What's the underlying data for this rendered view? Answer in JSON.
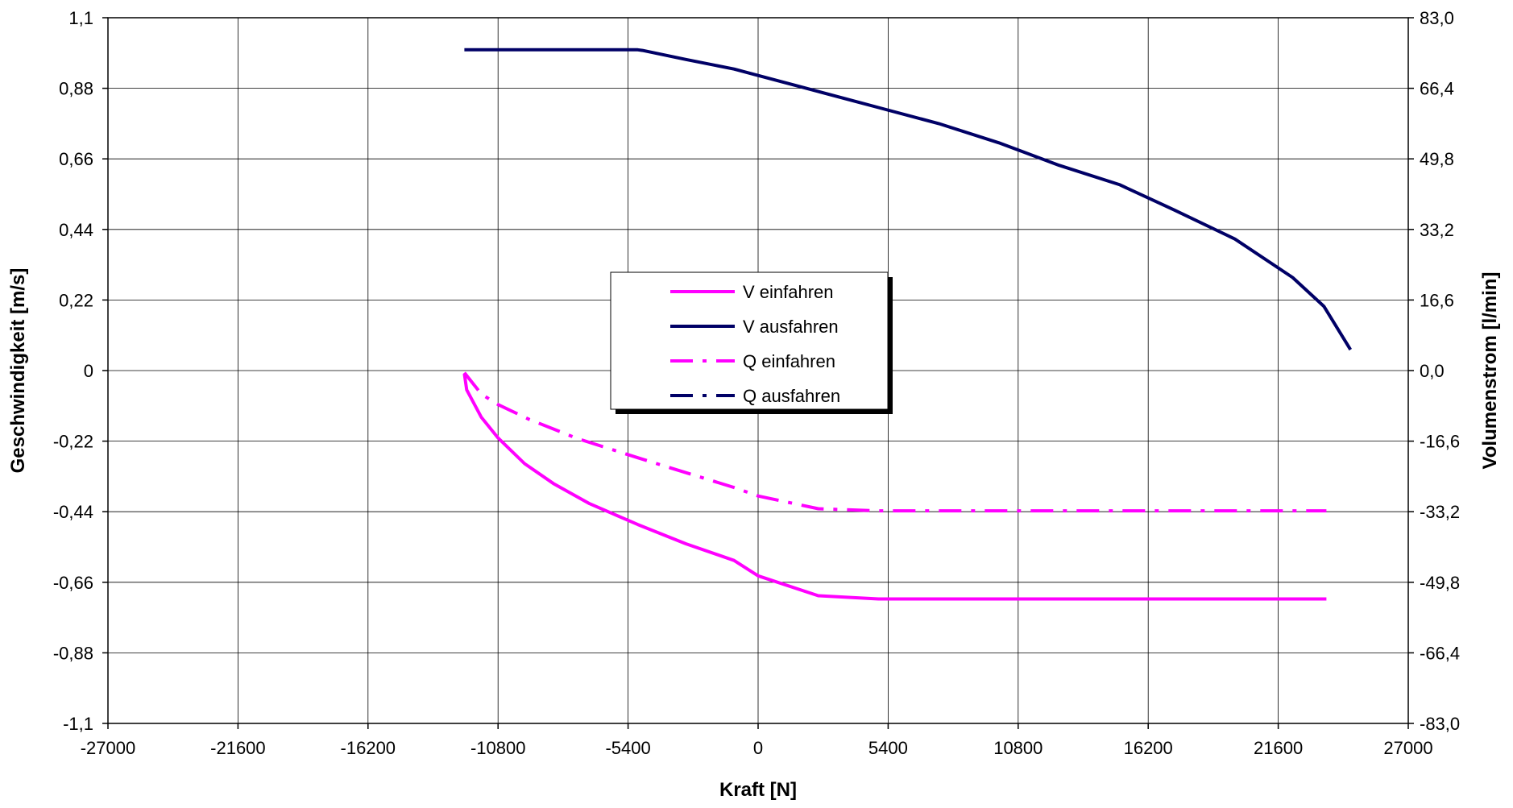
{
  "chart_data": {
    "type": "line",
    "title": "",
    "xlabel": "Kraft [N]",
    "ylabel": "Geschwindigkeit [m/s]",
    "y2label": "Volumenstrom [l/min]",
    "xlim": [
      -27000,
      27000
    ],
    "ylim": [
      -1.1,
      1.1
    ],
    "y2lim": [
      -83.0,
      83.0
    ],
    "grid": true,
    "legend_position": "center",
    "x_ticks": [
      "-27000",
      "-21600",
      "-16200",
      "-10800",
      "-5400",
      "0",
      "5400",
      "10800",
      "16200",
      "21600",
      "27000"
    ],
    "y_ticks": [
      "1,1",
      "0,88",
      "0,66",
      "0,44",
      "0,22",
      "0",
      "-0,22",
      "-0,44",
      "-0,66",
      "-0,88",
      "-1,1"
    ],
    "y2_ticks": [
      "83,0",
      "66,4",
      "49,8",
      "33,2",
      "16,6",
      "0,0",
      "-16,6",
      "-33,2",
      "-49,8",
      "-66,4",
      "-83,0"
    ],
    "series": [
      {
        "name": "V einfahren",
        "axis": "left",
        "style": "solid",
        "color": "#ff00ff",
        "points": [
          [
            -12200,
            -0.01
          ],
          [
            -12100,
            -0.06
          ],
          [
            -11500,
            -0.145
          ],
          [
            -10800,
            -0.21
          ],
          [
            -9700,
            -0.29
          ],
          [
            -8500,
            -0.352
          ],
          [
            -7000,
            -0.415
          ],
          [
            -5000,
            -0.48
          ],
          [
            -3000,
            -0.54
          ],
          [
            -1000,
            -0.592
          ],
          [
            0,
            -0.64
          ],
          [
            2500,
            -0.702
          ],
          [
            5000,
            -0.712
          ],
          [
            7000,
            -0.712
          ],
          [
            10800,
            -0.712
          ],
          [
            16200,
            -0.712
          ],
          [
            21600,
            -0.712
          ],
          [
            23600,
            -0.712
          ]
        ]
      },
      {
        "name": "V ausfahren",
        "axis": "left",
        "style": "solid",
        "color": "#000066",
        "points": [
          [
            -12200,
            1.0
          ],
          [
            -10800,
            1.0
          ],
          [
            -8100,
            1.0
          ],
          [
            -5000,
            1.0
          ],
          [
            -4800,
            0.998
          ],
          [
            -3000,
            0.97
          ],
          [
            -1000,
            0.94
          ],
          [
            0,
            0.92
          ],
          [
            2500,
            0.87
          ],
          [
            5000,
            0.82
          ],
          [
            7500,
            0.77
          ],
          [
            10000,
            0.71
          ],
          [
            12500,
            0.64
          ],
          [
            15000,
            0.58
          ],
          [
            17300,
            0.5
          ],
          [
            19800,
            0.41
          ],
          [
            22200,
            0.29
          ],
          [
            23500,
            0.2
          ],
          [
            24600,
            0.065
          ]
        ]
      },
      {
        "name": "Q einfahren",
        "axis": "right",
        "style": "dashdot",
        "color": "#ff00ff",
        "points": [
          [
            -12200,
            -0.5
          ],
          [
            -11500,
            -5.5
          ],
          [
            -10800,
            -8.0
          ],
          [
            -9500,
            -11.5
          ],
          [
            -7500,
            -16.0
          ],
          [
            -5000,
            -20.5
          ],
          [
            -3000,
            -24.0
          ],
          [
            -1000,
            -27.5
          ],
          [
            0,
            -29.5
          ],
          [
            2500,
            -32.5
          ],
          [
            5000,
            -33.0
          ],
          [
            10800,
            -33.0
          ],
          [
            16200,
            -33.0
          ],
          [
            21600,
            -33.0
          ],
          [
            23600,
            -33.0
          ]
        ]
      },
      {
        "name": "Q ausfahren",
        "axis": "right",
        "style": "dashdot",
        "color": "#000066",
        "points": []
      }
    ]
  }
}
